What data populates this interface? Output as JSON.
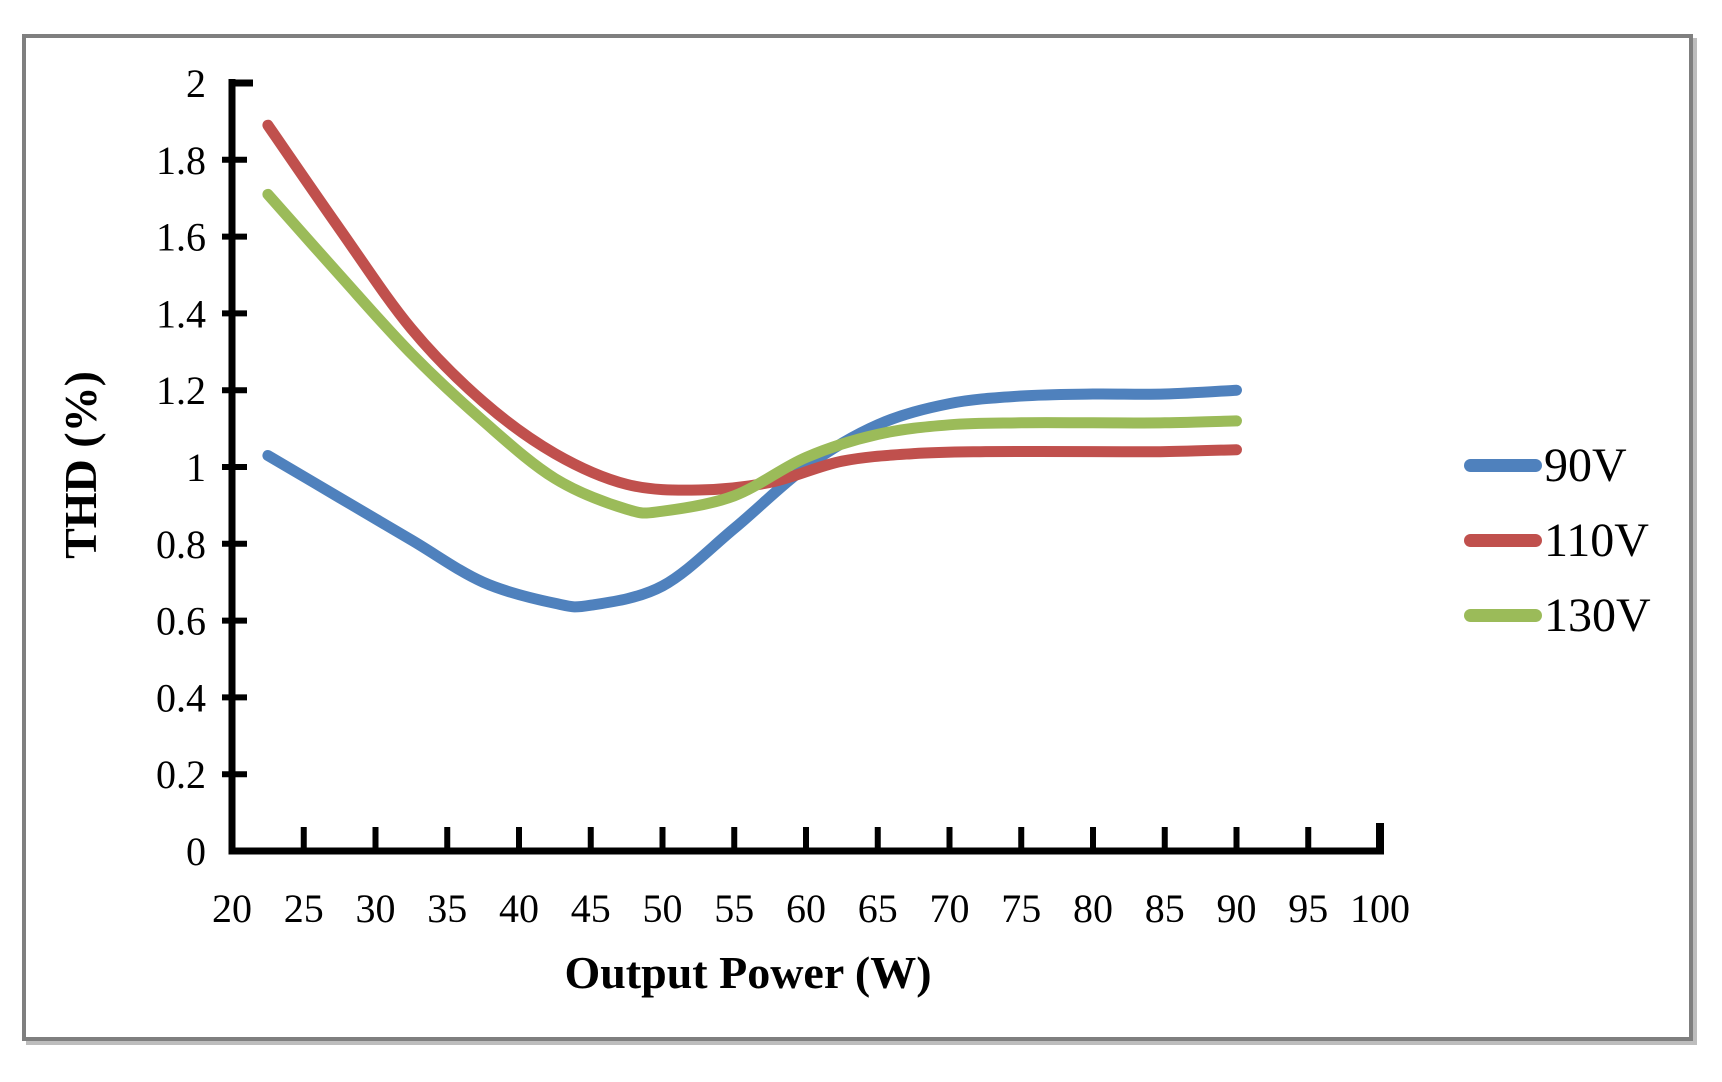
{
  "chart_data": {
    "type": "line",
    "title": "",
    "xlabel": "Output Power (W)",
    "ylabel": "THD (%)",
    "xlim": [
      20,
      100
    ],
    "ylim": [
      0,
      2
    ],
    "x_ticks": [
      20,
      25,
      30,
      35,
      40,
      45,
      50,
      55,
      60,
      65,
      70,
      75,
      80,
      85,
      90,
      95,
      100
    ],
    "y_ticks": [
      0,
      0.2,
      0.4,
      0.6,
      0.8,
      1,
      1.2,
      1.4,
      1.6,
      1.8,
      2
    ],
    "grid": false,
    "legend_position": "right",
    "series": [
      {
        "name": "90V",
        "color": "#4F81BD",
        "points": [
          [
            22.5,
            1.03
          ],
          [
            27.5,
            0.92
          ],
          [
            32.5,
            0.81
          ],
          [
            37.5,
            0.7
          ],
          [
            42.5,
            0.645
          ],
          [
            45,
            0.64
          ],
          [
            50,
            0.69
          ],
          [
            55,
            0.84
          ],
          [
            60,
            1.0
          ],
          [
            65,
            1.11
          ],
          [
            70,
            1.165
          ],
          [
            75,
            1.185
          ],
          [
            80,
            1.19
          ],
          [
            85,
            1.19
          ],
          [
            90,
            1.2
          ]
        ]
      },
      {
        "name": "110V",
        "color": "#C0504D",
        "points": [
          [
            22.5,
            1.89
          ],
          [
            27.5,
            1.62
          ],
          [
            32.5,
            1.36
          ],
          [
            37.5,
            1.17
          ],
          [
            42.5,
            1.035
          ],
          [
            47.5,
            0.955
          ],
          [
            52.5,
            0.94
          ],
          [
            57.5,
            0.96
          ],
          [
            62.5,
            1.015
          ],
          [
            67.5,
            1.035
          ],
          [
            72.5,
            1.04
          ],
          [
            80,
            1.04
          ],
          [
            85,
            1.04
          ],
          [
            90,
            1.045
          ]
        ]
      },
      {
        "name": "130V",
        "color": "#9BBB59",
        "points": [
          [
            22.5,
            1.71
          ],
          [
            27.5,
            1.5
          ],
          [
            32.5,
            1.295
          ],
          [
            37.5,
            1.12
          ],
          [
            42.5,
            0.97
          ],
          [
            47.5,
            0.89
          ],
          [
            50,
            0.885
          ],
          [
            55,
            0.925
          ],
          [
            60,
            1.025
          ],
          [
            65,
            1.085
          ],
          [
            70,
            1.11
          ],
          [
            75,
            1.115
          ],
          [
            80,
            1.115
          ],
          [
            85,
            1.115
          ],
          [
            90,
            1.12
          ]
        ]
      }
    ]
  },
  "frame": {
    "border_color": "#7f7f7f",
    "shadow_color": "#bdbdbd",
    "background": "#ffffff"
  },
  "axis": {
    "color": "#000000"
  }
}
